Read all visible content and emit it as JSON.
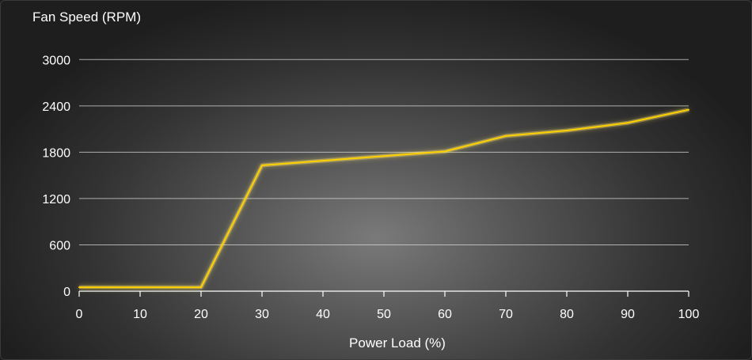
{
  "chart_data": {
    "type": "line",
    "title": "",
    "ylabel": "Fan Speed (RPM)",
    "xlabel": "Power Load (%)",
    "xlim": [
      0,
      100
    ],
    "ylim": [
      0,
      3300
    ],
    "x_ticks": [
      0,
      10,
      20,
      30,
      40,
      50,
      60,
      70,
      80,
      90,
      100
    ],
    "y_ticks": [
      0,
      600,
      1200,
      1800,
      2400,
      3000
    ],
    "grid": "horizontal",
    "series": [
      {
        "x": [
          0,
          20,
          30,
          40,
          50,
          60,
          70,
          80,
          90,
          100
        ],
        "y": [
          50,
          50,
          1630,
          1690,
          1750,
          1810,
          2010,
          2080,
          2180,
          2350
        ]
      }
    ],
    "colors": {
      "line": "#ffd000",
      "glow": "#ffe566",
      "grid": "#d8d8d8",
      "axis": "#ffffff"
    }
  }
}
